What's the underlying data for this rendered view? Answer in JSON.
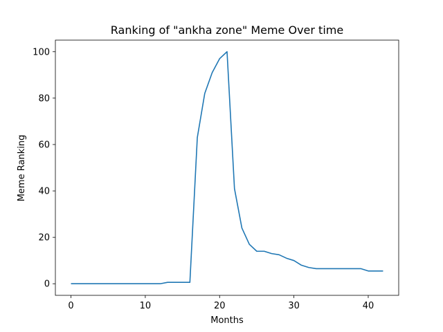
{
  "chart_data": {
    "type": "line",
    "title": "Ranking of \"ankha zone\" Meme Over time",
    "xlabel": "Months",
    "ylabel": "Meme Ranking",
    "xlim": [
      -2.1,
      44.1
    ],
    "ylim": [
      -5,
      105
    ],
    "xticks": [
      0,
      10,
      20,
      30,
      40
    ],
    "yticks": [
      0,
      20,
      40,
      60,
      80,
      100
    ],
    "grid": false,
    "color": "#1f77b4",
    "series": [
      {
        "x": [
          0,
          1,
          2,
          3,
          4,
          5,
          6,
          7,
          8,
          9,
          10,
          11,
          12,
          13,
          14,
          15,
          16,
          17,
          18,
          19,
          20,
          21,
          22,
          23,
          24,
          25,
          26,
          27,
          28,
          29,
          30,
          31,
          32,
          33,
          34,
          35,
          36,
          37,
          38,
          39,
          40,
          41,
          42
        ],
        "values": [
          0,
          0,
          0,
          0,
          0,
          0,
          0,
          0,
          0,
          0,
          0,
          0,
          0,
          0.6,
          0.6,
          0.6,
          0.6,
          63,
          82,
          91,
          97,
          100,
          41,
          24,
          17,
          14,
          14,
          13,
          12.5,
          11,
          10,
          8,
          7,
          6.5,
          6.5,
          6.5,
          6.5,
          6.5,
          6.5,
          6.5,
          5.5,
          5.5,
          5.5
        ]
      }
    ]
  }
}
